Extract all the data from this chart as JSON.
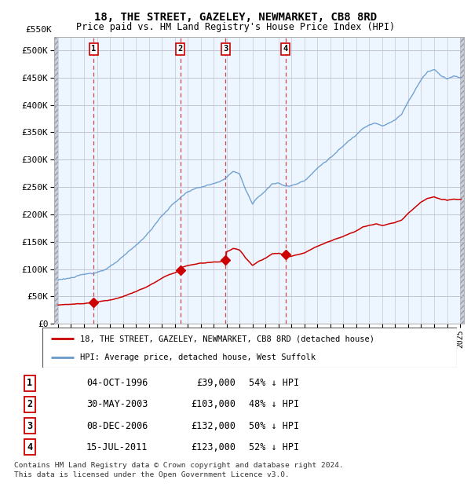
{
  "title1": "18, THE STREET, GAZELEY, NEWMARKET, CB8 8RD",
  "title2": "Price paid vs. HM Land Registry's House Price Index (HPI)",
  "ylim": [
    0,
    525000
  ],
  "yticks": [
    0,
    50000,
    100000,
    150000,
    200000,
    250000,
    300000,
    350000,
    400000,
    450000,
    500000
  ],
  "ytick_labels": [
    "£0",
    "£50K",
    "£100K",
    "£150K",
    "£200K",
    "£250K",
    "£300K",
    "£350K",
    "£400K",
    "£450K",
    "£500K"
  ],
  "ytop_label": "£550K",
  "xlim_start": 1993.7,
  "xlim_end": 2025.3,
  "sale_points": [
    {
      "label": "1",
      "year": 1996.75,
      "price": 39000
    },
    {
      "label": "2",
      "year": 2003.42,
      "price": 103000
    },
    {
      "label": "3",
      "year": 2006.92,
      "price": 132000
    },
    {
      "label": "4",
      "year": 2011.54,
      "price": 123000
    }
  ],
  "sale_table": [
    {
      "num": "1",
      "date": "04-OCT-1996",
      "price": "£39,000",
      "pct": "54% ↓ HPI"
    },
    {
      "num": "2",
      "date": "30-MAY-2003",
      "price": "£103,000",
      "pct": "48% ↓ HPI"
    },
    {
      "num": "3",
      "date": "08-DEC-2006",
      "price": "£132,000",
      "pct": "50% ↓ HPI"
    },
    {
      "num": "4",
      "date": "15-JUL-2011",
      "price": "£123,000",
      "pct": "52% ↓ HPI"
    }
  ],
  "legend1": "18, THE STREET, GAZELEY, NEWMARKET, CB8 8RD (detached house)",
  "legend2": "HPI: Average price, detached house, West Suffolk",
  "footer1": "Contains HM Land Registry data © Crown copyright and database right 2024.",
  "footer2": "This data is licensed under the Open Government Licence v3.0.",
  "red_color": "#cc0000",
  "blue_line_color": "#6699cc",
  "hatch_color": "#c8d8e8",
  "blue_bg_color": "#ddeeff",
  "grid_color": "#c8c8c8",
  "sale_line_color": "#cc4444"
}
